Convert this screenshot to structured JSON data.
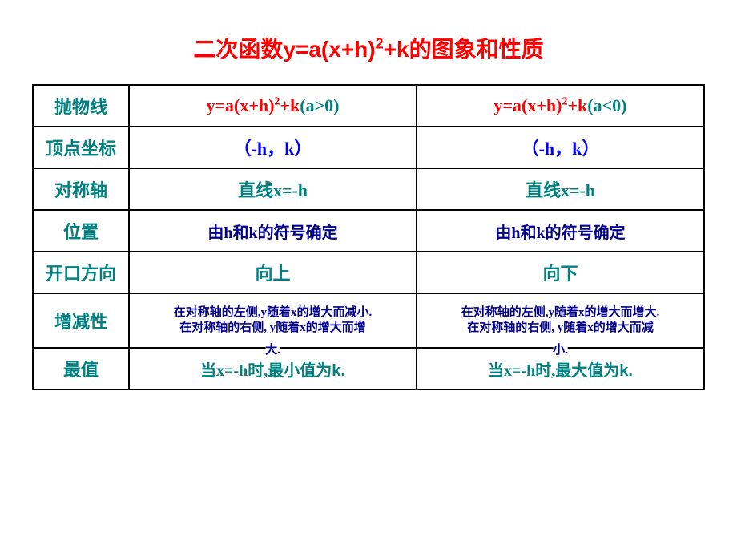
{
  "title_prefix": "二次函数",
  "title_formula_a": "y=a(x+h)",
  "title_sup": "2",
  "title_formula_b": "+k",
  "title_suffix": "的图象和性质",
  "headers": {
    "parabola": "抛物线",
    "vertex": "顶点坐标",
    "axis": "对称轴",
    "position": "位置",
    "direction": "开口方向",
    "monotone": "增减性",
    "extreme": "最值"
  },
  "col_pos": {
    "formula_main": "y=a(x+h)",
    "formula_sup": "2",
    "formula_k": "+k",
    "formula_cond": "(a>0)",
    "vertex": "（-h，k）",
    "axis": "直线x=-h",
    "position": "由h和k的符号确定",
    "direction": "向上",
    "mono_l1": "在对称轴的左侧,y随着x的增大而减小.",
    "mono_l2": "在对称轴的右侧, y随着x的增大而增",
    "mono_overflow": "大.",
    "extreme_eq": "当x=-h时,",
    "extreme_txt": "最小值为k."
  },
  "col_neg": {
    "formula_main": "y=a(x+h)",
    "formula_sup": "2",
    "formula_k": "+k",
    "formula_cond": "(a<0)",
    "vertex": "（-h，k）",
    "axis": "直线x=-h",
    "position": "由h和k的符号确定",
    "direction": "向下",
    "mono_l1": "在对称轴的左侧,y随着x的增大而增大.",
    "mono_l2": "在对称轴的右侧, y随着x的增大而减",
    "mono_overflow": "小.",
    "extreme_eq": "当x=-h时,",
    "extreme_txt": "最大值为k."
  }
}
